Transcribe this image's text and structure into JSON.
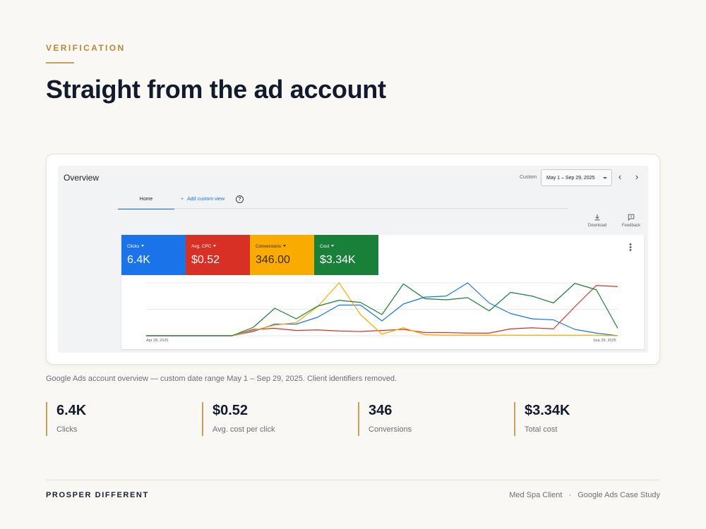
{
  "header": {
    "eyebrow": "VERIFICATION",
    "title": "Straight from the ad account"
  },
  "screenshot": {
    "title": "Overview",
    "custom_label": "Custom",
    "date_range": "May 1 – Sep 29, 2025",
    "prev_icon": "chevron-left-icon",
    "next_icon": "chevron-right-icon",
    "tabs": [
      {
        "label": "Home",
        "active": true
      },
      {
        "label": "Add custom view",
        "prefix": "+"
      }
    ],
    "help_glyph": "?",
    "tools": [
      {
        "label": "Download",
        "icon": "download-icon"
      },
      {
        "label": "Feedback",
        "icon": "feedback-icon"
      }
    ],
    "metrics": [
      {
        "label": "Clicks",
        "value": "6.4K",
        "color": "#1a73e8"
      },
      {
        "label": "Avg. CPC",
        "value": "$0.52",
        "color": "#d93025"
      },
      {
        "label": "Conversions",
        "value": "346.00",
        "color": "#f9ab00"
      },
      {
        "label": "Cost",
        "value": "$3.34K",
        "color": "#188038"
      }
    ]
  },
  "chart_data": {
    "type": "line",
    "x_start_label": "Apr 28, 2025",
    "x_end_label": "Sep 29, 2025",
    "x": [
      0,
      1,
      2,
      3,
      4,
      5,
      6,
      7,
      8,
      9,
      10,
      11,
      12,
      13,
      14,
      15,
      16,
      17,
      18,
      19,
      20,
      21,
      22
    ],
    "grid": true,
    "ylim": [
      0,
      100
    ],
    "series": [
      {
        "metric": "Clicks",
        "color": "#1a73e8",
        "values": [
          0,
          0,
          0,
          0,
          0,
          8,
          22,
          22,
          35,
          58,
          58,
          28,
          60,
          73,
          75,
          100,
          62,
          42,
          32,
          30,
          12,
          5,
          0
        ]
      },
      {
        "metric": "Avg. CPC",
        "color": "#d93025",
        "values": [
          0,
          0,
          0,
          0,
          0,
          12,
          14,
          10,
          11,
          9,
          8,
          10,
          12,
          6,
          6,
          5,
          5,
          13,
          15,
          13,
          55,
          95,
          93
        ]
      },
      {
        "metric": "Conversions",
        "color": "#f9ab00",
        "values": [
          0,
          0,
          0,
          0,
          0,
          10,
          20,
          25,
          55,
          100,
          40,
          3,
          15,
          2,
          1,
          1,
          1,
          1,
          1,
          1,
          1,
          1,
          0
        ]
      },
      {
        "metric": "Cost",
        "color": "#188038",
        "values": [
          0,
          0,
          0,
          0,
          0,
          16,
          52,
          32,
          56,
          67,
          63,
          40,
          98,
          70,
          68,
          72,
          47,
          82,
          75,
          62,
          99,
          87,
          14
        ]
      }
    ]
  },
  "caption": "Google Ads account overview — custom date range May 1 – Sep 29, 2025. Client identifiers removed.",
  "stats": [
    {
      "value": "6.4K",
      "label": "Clicks"
    },
    {
      "value": "$0.52",
      "label": "Avg. cost per click"
    },
    {
      "value": "346",
      "label": "Conversions"
    },
    {
      "value": "$3.34K",
      "label": "Total cost"
    }
  ],
  "footer": {
    "brand": "PROSPER DIFFERENT",
    "client": "Med Spa Client",
    "separator": "·",
    "study": "Google Ads Case Study"
  }
}
